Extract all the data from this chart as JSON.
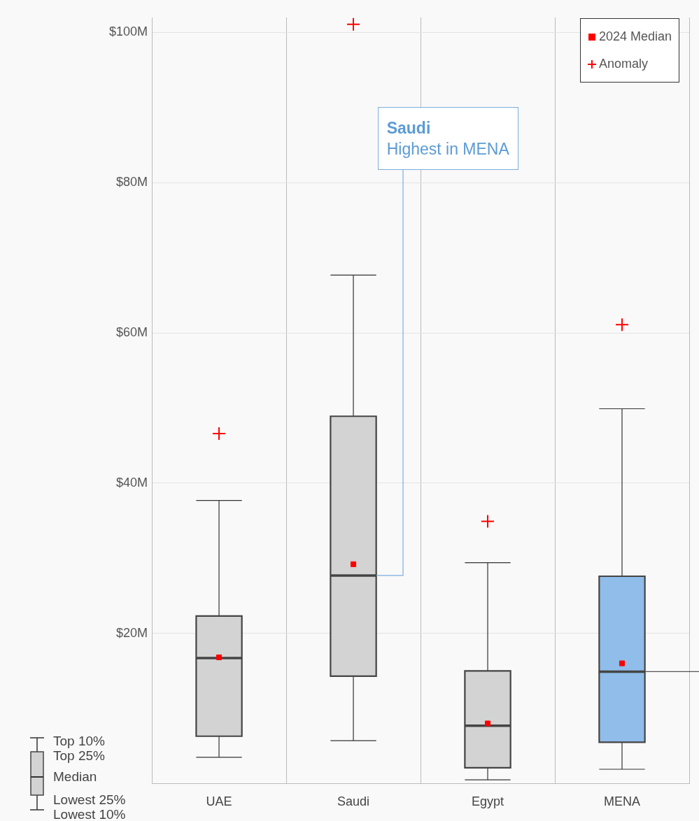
{
  "chart_data": {
    "type": "box",
    "categories": [
      "UAE",
      "Saudi",
      "Egypt",
      "MENA"
    ],
    "boxes": [
      {
        "low": 3.5,
        "q1": 6.3,
        "median": 16.7,
        "q3": 22.3,
        "high": 37.7
      },
      {
        "low": 5.7,
        "q1": 14.3,
        "median": 27.7,
        "q3": 48.9,
        "high": 67.7
      },
      {
        "low": 0.5,
        "q1": 2.1,
        "median": 7.7,
        "q3": 15.0,
        "high": 29.4
      },
      {
        "low": 1.9,
        "q1": 5.5,
        "median": 14.9,
        "q3": 27.6,
        "high": 49.9
      }
    ],
    "colors": [
      "#d3d3d3",
      "#d3d3d3",
      "#d3d3d3",
      "#90bde9"
    ],
    "series": [
      {
        "name": "2024 Median",
        "type": "scatter",
        "marker": "square",
        "color": "#ff0000",
        "values": [
          16.8,
          29.2,
          8.0,
          16.0
        ]
      },
      {
        "name": "Anomaly",
        "type": "scatter",
        "marker": "cross",
        "color": "#ff0000",
        "values": [
          46.6,
          101.1,
          34.9,
          61.1
        ]
      }
    ],
    "ylim": [
      0,
      102
    ],
    "yticks": [
      {
        "value": 20,
        "label": "$20M"
      },
      {
        "value": 40,
        "label": "$40M"
      },
      {
        "value": 60,
        "label": "$60M"
      },
      {
        "value": 80,
        "label": "$80M"
      },
      {
        "value": 100,
        "label": "$100M"
      }
    ],
    "grid": true,
    "legend": "top right",
    "ref_lines": [
      {
        "axis": "y",
        "value": 14.9,
        "color": "#555555"
      }
    ],
    "annotations": [
      "Saudi\nHighest in MENA",
      "Top 10%",
      "Top 25%",
      "Median",
      "Lowest 25%",
      "Lowest 10%"
    ]
  }
}
